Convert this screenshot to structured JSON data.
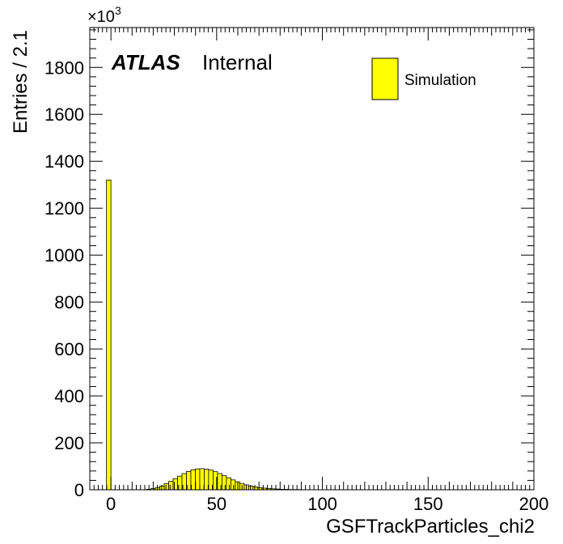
{
  "chart_data": {
    "type": "bar",
    "title": "",
    "xlabel": "GSFTrackParticles_chi2",
    "ylabel": "Entries / 2.1",
    "y_multiplier": "×10",
    "y_multiplier_exp": "3",
    "xlim": [
      -10,
      200
    ],
    "ylim": [
      0,
      1970
    ],
    "x_ticks": [
      0,
      50,
      100,
      150,
      200
    ],
    "y_ticks": [
      0,
      200,
      400,
      600,
      800,
      1000,
      1200,
      1400,
      1600,
      1800
    ],
    "bin_width": 2.1,
    "bin_start": -2.1,
    "values": [
      1320,
      0,
      0,
      0,
      0,
      0,
      0,
      0,
      0,
      2,
      5,
      9,
      16,
      26,
      36,
      47,
      58,
      69,
      78,
      85,
      89,
      90,
      88,
      84,
      77,
      69,
      60,
      51,
      42,
      34,
      27,
      21,
      16,
      12,
      9,
      7,
      5,
      4,
      3,
      2,
      2,
      1,
      1,
      1,
      0,
      0,
      0,
      0,
      0,
      0
    ],
    "series": [
      {
        "name": "Simulation",
        "color": "#ffff00"
      }
    ],
    "legend_position": "top-right",
    "grid": false,
    "annotations": {
      "atlas": "ATLAS",
      "status": "Internal"
    }
  }
}
